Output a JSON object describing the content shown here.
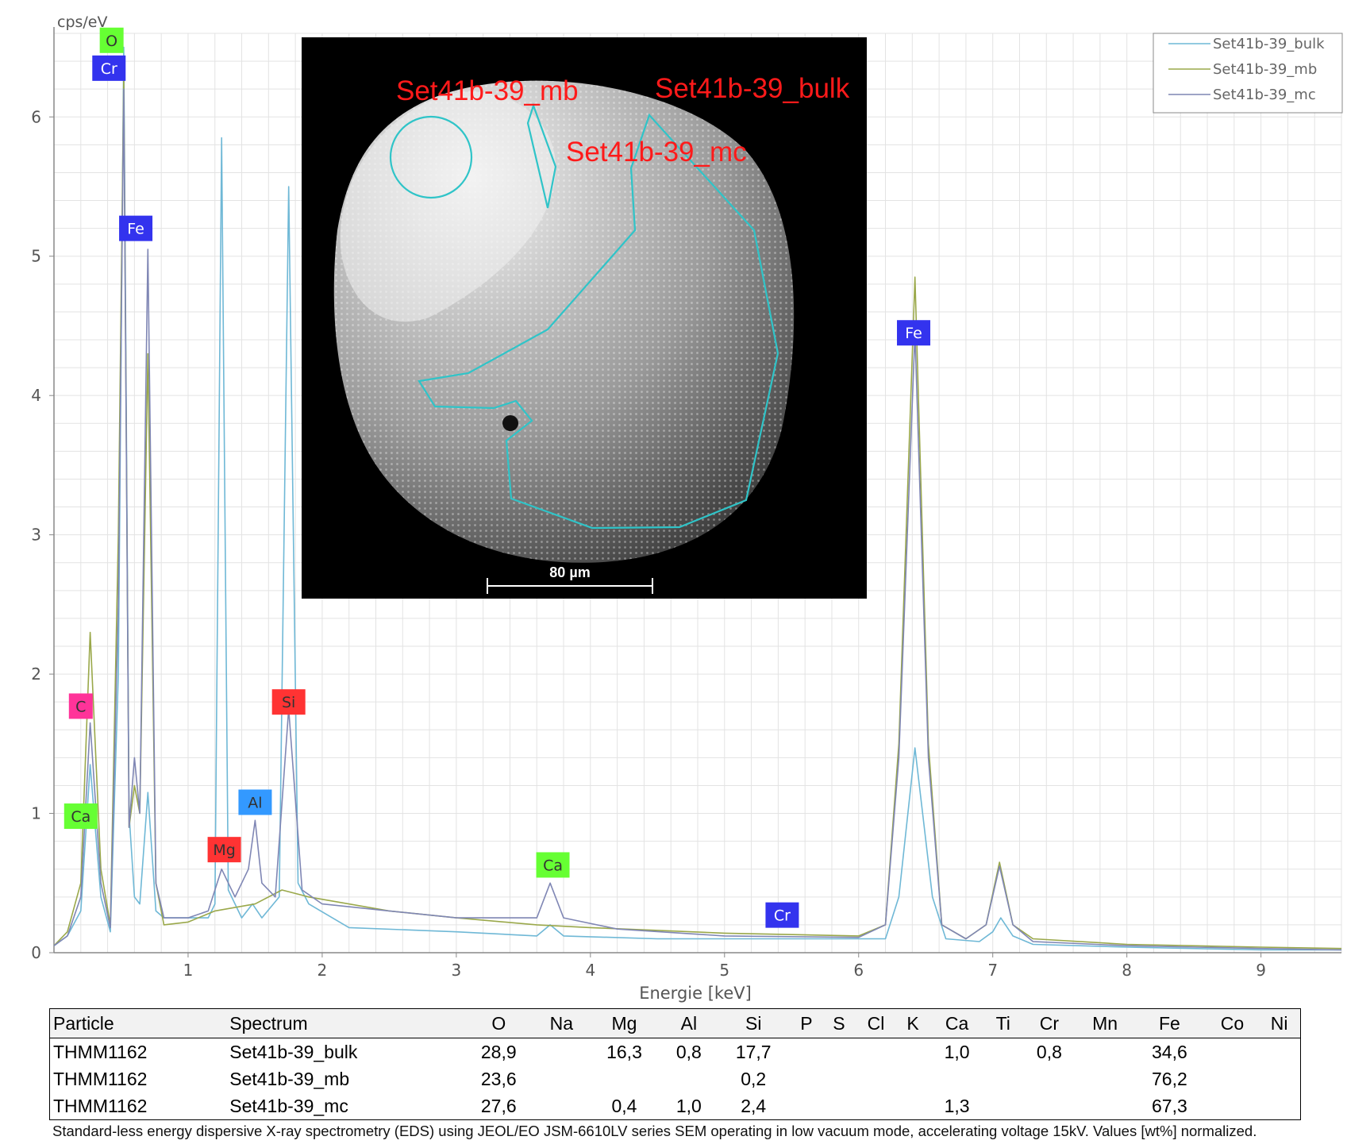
{
  "chart_data": {
    "type": "line",
    "ylabel": "cps/eV",
    "xlabel": "Energie [keV]",
    "xlim": [
      0,
      9.6
    ],
    "ylim": [
      0,
      6.6
    ],
    "xticks": [
      "1",
      "2",
      "3",
      "4",
      "5",
      "6",
      "7",
      "8",
      "9"
    ],
    "yticks": [
      "0",
      "1",
      "2",
      "3",
      "4",
      "5",
      "6"
    ],
    "grid": true,
    "legend_position": "top-right",
    "series": [
      {
        "name": "Set41b-39_bulk",
        "color": "#6fb8d6",
        "points": [
          [
            0.0,
            0.05
          ],
          [
            0.1,
            0.12
          ],
          [
            0.2,
            0.3
          ],
          [
            0.27,
            1.35
          ],
          [
            0.35,
            0.4
          ],
          [
            0.42,
            0.15
          ],
          [
            0.48,
            2.0
          ],
          [
            0.52,
            6.5
          ],
          [
            0.56,
            1.0
          ],
          [
            0.6,
            0.4
          ],
          [
            0.64,
            0.35
          ],
          [
            0.7,
            1.15
          ],
          [
            0.76,
            0.3
          ],
          [
            0.82,
            0.25
          ],
          [
            1.0,
            0.25
          ],
          [
            1.15,
            0.25
          ],
          [
            1.2,
            0.35
          ],
          [
            1.25,
            5.85
          ],
          [
            1.3,
            0.45
          ],
          [
            1.4,
            0.25
          ],
          [
            1.48,
            0.35
          ],
          [
            1.55,
            0.25
          ],
          [
            1.68,
            0.4
          ],
          [
            1.75,
            5.5
          ],
          [
            1.82,
            0.5
          ],
          [
            1.9,
            0.35
          ],
          [
            2.2,
            0.18
          ],
          [
            3.0,
            0.15
          ],
          [
            3.6,
            0.12
          ],
          [
            3.7,
            0.2
          ],
          [
            3.8,
            0.12
          ],
          [
            4.5,
            0.1
          ],
          [
            5.5,
            0.1
          ],
          [
            6.2,
            0.1
          ],
          [
            6.3,
            0.4
          ],
          [
            6.42,
            1.47
          ],
          [
            6.55,
            0.4
          ],
          [
            6.65,
            0.1
          ],
          [
            6.9,
            0.08
          ],
          [
            7.0,
            0.15
          ],
          [
            7.06,
            0.25
          ],
          [
            7.15,
            0.12
          ],
          [
            7.3,
            0.06
          ],
          [
            8.0,
            0.04
          ],
          [
            9.0,
            0.02
          ],
          [
            9.6,
            0.02
          ]
        ]
      },
      {
        "name": "Set41b-39_mb",
        "color": "#9aa84a",
        "points": [
          [
            0.0,
            0.05
          ],
          [
            0.1,
            0.15
          ],
          [
            0.2,
            0.5
          ],
          [
            0.27,
            2.3
          ],
          [
            0.35,
            0.6
          ],
          [
            0.42,
            0.2
          ],
          [
            0.48,
            3.0
          ],
          [
            0.52,
            6.3
          ],
          [
            0.56,
            0.9
          ],
          [
            0.6,
            1.2
          ],
          [
            0.64,
            1.0
          ],
          [
            0.7,
            4.3
          ],
          [
            0.76,
            0.5
          ],
          [
            0.82,
            0.2
          ],
          [
            1.0,
            0.22
          ],
          [
            1.2,
            0.3
          ],
          [
            1.5,
            0.35
          ],
          [
            1.7,
            0.45
          ],
          [
            1.9,
            0.4
          ],
          [
            2.5,
            0.3
          ],
          [
            3.0,
            0.25
          ],
          [
            3.6,
            0.2
          ],
          [
            4.0,
            0.18
          ],
          [
            5.0,
            0.14
          ],
          [
            6.0,
            0.12
          ],
          [
            6.2,
            0.2
          ],
          [
            6.3,
            1.5
          ],
          [
            6.42,
            4.85
          ],
          [
            6.52,
            1.5
          ],
          [
            6.62,
            0.2
          ],
          [
            6.8,
            0.1
          ],
          [
            6.95,
            0.2
          ],
          [
            7.05,
            0.65
          ],
          [
            7.15,
            0.2
          ],
          [
            7.3,
            0.1
          ],
          [
            8.0,
            0.06
          ],
          [
            9.0,
            0.04
          ],
          [
            9.6,
            0.03
          ]
        ]
      },
      {
        "name": "Set41b-39_mc",
        "color": "#7f86b4",
        "points": [
          [
            0.0,
            0.05
          ],
          [
            0.1,
            0.12
          ],
          [
            0.2,
            0.4
          ],
          [
            0.27,
            1.65
          ],
          [
            0.35,
            0.5
          ],
          [
            0.42,
            0.18
          ],
          [
            0.48,
            2.5
          ],
          [
            0.52,
            6.2
          ],
          [
            0.56,
            0.9
          ],
          [
            0.6,
            1.4
          ],
          [
            0.64,
            1.0
          ],
          [
            0.7,
            5.05
          ],
          [
            0.76,
            0.5
          ],
          [
            0.82,
            0.25
          ],
          [
            1.0,
            0.25
          ],
          [
            1.15,
            0.3
          ],
          [
            1.25,
            0.6
          ],
          [
            1.35,
            0.4
          ],
          [
            1.45,
            0.6
          ],
          [
            1.5,
            0.95
          ],
          [
            1.55,
            0.5
          ],
          [
            1.65,
            0.4
          ],
          [
            1.75,
            1.75
          ],
          [
            1.85,
            0.45
          ],
          [
            2.0,
            0.35
          ],
          [
            2.5,
            0.3
          ],
          [
            3.0,
            0.25
          ],
          [
            3.6,
            0.25
          ],
          [
            3.7,
            0.5
          ],
          [
            3.8,
            0.25
          ],
          [
            4.2,
            0.17
          ],
          [
            5.0,
            0.12
          ],
          [
            6.0,
            0.11
          ],
          [
            6.2,
            0.2
          ],
          [
            6.3,
            1.4
          ],
          [
            6.42,
            4.45
          ],
          [
            6.52,
            1.4
          ],
          [
            6.62,
            0.2
          ],
          [
            6.8,
            0.1
          ],
          [
            6.95,
            0.2
          ],
          [
            7.05,
            0.62
          ],
          [
            7.15,
            0.2
          ],
          [
            7.3,
            0.08
          ],
          [
            8.0,
            0.05
          ],
          [
            9.0,
            0.03
          ],
          [
            9.6,
            0.02
          ]
        ]
      }
    ],
    "element_labels": [
      {
        "text": "O",
        "x": 0.43,
        "y": 6.55,
        "bg": "#66ff33",
        "fg": "#333333"
      },
      {
        "text": "Cr",
        "x": 0.41,
        "y": 6.35,
        "bg": "#3333ee",
        "fg": "#ffffff"
      },
      {
        "text": "Fe",
        "x": 0.61,
        "y": 5.2,
        "bg": "#3333ee",
        "fg": "#ffffff"
      },
      {
        "text": "C",
        "x": 0.2,
        "y": 1.77,
        "bg": "#ff3399",
        "fg": "#333333"
      },
      {
        "text": "Ca",
        "x": 0.2,
        "y": 0.98,
        "bg": "#66ff33",
        "fg": "#333333"
      },
      {
        "text": "Mg",
        "x": 1.27,
        "y": 0.74,
        "bg": "#ff3333",
        "fg": "#333333"
      },
      {
        "text": "Al",
        "x": 1.5,
        "y": 1.08,
        "bg": "#3399ff",
        "fg": "#333333"
      },
      {
        "text": "Si",
        "x": 1.75,
        "y": 1.8,
        "bg": "#ff3333",
        "fg": "#333333"
      },
      {
        "text": "Ca",
        "x": 3.72,
        "y": 0.63,
        "bg": "#66ff33",
        "fg": "#333333"
      },
      {
        "text": "Cr",
        "x": 5.43,
        "y": 0.27,
        "bg": "#3333ee",
        "fg": "#ffffff"
      },
      {
        "text": "Fe",
        "x": 6.41,
        "y": 4.45,
        "bg": "#3333ee",
        "fg": "#ffffff"
      }
    ]
  },
  "sem_image": {
    "labels": [
      "Set41b-39_mb",
      "Set41b-39_bulk",
      "Set41b-39_mc"
    ],
    "scale_bar": "80 µm"
  },
  "table": {
    "headers": [
      "Particle",
      "Spectrum",
      "O",
      "Na",
      "Mg",
      "Al",
      "Si",
      "P",
      "S",
      "Cl",
      "K",
      "Ca",
      "Ti",
      "Cr",
      "Mn",
      "Fe",
      "Co",
      "Ni"
    ],
    "rows": [
      [
        "THMM1162",
        "Set41b-39_bulk",
        "28,9",
        "",
        "16,3",
        "0,8",
        "17,7",
        "",
        "",
        "",
        "",
        "1,0",
        "",
        "0,8",
        "",
        "34,6",
        "",
        ""
      ],
      [
        "THMM1162",
        "Set41b-39_mb",
        "23,6",
        "",
        "",
        "",
        "0,2",
        "",
        "",
        "",
        "",
        "",
        "",
        "",
        "",
        "76,2",
        "",
        ""
      ],
      [
        "THMM1162",
        "Set41b-39_mc",
        "27,6",
        "",
        "0,4",
        "1,0",
        "2,4",
        "",
        "",
        "",
        "",
        "1,3",
        "",
        "",
        "",
        "67,3",
        "",
        ""
      ]
    ]
  },
  "caption": "Standard-less energy dispersive X-ray spectrometry (EDS) using JEOL/EO JSM-6610LV series SEM operating in low vacuum mode, accelerating voltage 15kV. Values [wt%] normalized."
}
